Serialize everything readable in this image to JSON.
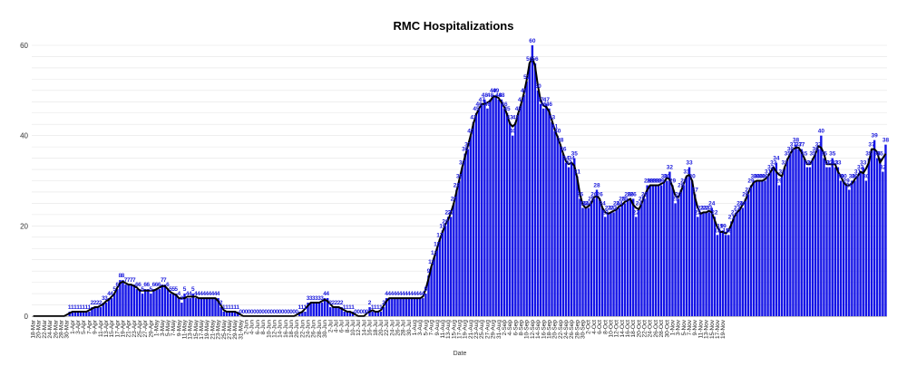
{
  "chart_data": {
    "type": "bar",
    "title": "RMC Hospitalizations",
    "xlabel": "Date",
    "ylabel": "",
    "ylim": [
      0,
      60
    ],
    "yticks": [
      0,
      20,
      40,
      60
    ],
    "grid": true,
    "bar_color": "#1414e6",
    "line_color": "#000000",
    "label_color": "#1a1adc",
    "start_date": "2020-03-18",
    "values": [
      0,
      0,
      0,
      0,
      0,
      0,
      0,
      0,
      0,
      0,
      0,
      0,
      0,
      1,
      1,
      1,
      1,
      1,
      1,
      1,
      1,
      2,
      2,
      2,
      2,
      3,
      3,
      4,
      4,
      5,
      6,
      8,
      8,
      7,
      7,
      7,
      7,
      6,
      6,
      5,
      6,
      6,
      5,
      6,
      6,
      6,
      7,
      7,
      6,
      5,
      5,
      5,
      4,
      3,
      5,
      4,
      4,
      5,
      4,
      4,
      4,
      4,
      4,
      4,
      4,
      4,
      4,
      2,
      1,
      1,
      1,
      1,
      1,
      1,
      0,
      0,
      0,
      0,
      0,
      0,
      0,
      0,
      0,
      0,
      0,
      0,
      0,
      0,
      0,
      0,
      0,
      0,
      0,
      0,
      0,
      1,
      1,
      1,
      3,
      3,
      3,
      3,
      3,
      3,
      4,
      4,
      2,
      2,
      2,
      2,
      2,
      1,
      1,
      1,
      1,
      0,
      0,
      0,
      0,
      0,
      2,
      1,
      1,
      1,
      1,
      2,
      4,
      4,
      4,
      4,
      4,
      4,
      4,
      4,
      4,
      4,
      4,
      4,
      4,
      4,
      5,
      9,
      11,
      13,
      15,
      17,
      19,
      20,
      22,
      22,
      25,
      28,
      30,
      33,
      36,
      37,
      40,
      43,
      45,
      46,
      47,
      48,
      46,
      48,
      49,
      49,
      48,
      48,
      46,
      45,
      43,
      40,
      43,
      45,
      47,
      49,
      52,
      56,
      60,
      56,
      50,
      47,
      46,
      47,
      46,
      43,
      41,
      40,
      38,
      36,
      34,
      33,
      34,
      35,
      31,
      26,
      24,
      24,
      24,
      25,
      26,
      28,
      26,
      24,
      22,
      23,
      23,
      23,
      24,
      24,
      25,
      25,
      26,
      26,
      26,
      22,
      24,
      25,
      26,
      29,
      29,
      29,
      29,
      29,
      29,
      30,
      30,
      32,
      29,
      25,
      26,
      28,
      29,
      31,
      33,
      30,
      27,
      22,
      23,
      23,
      23,
      23,
      24,
      22,
      18,
      19,
      19,
      18,
      18,
      21,
      22,
      23,
      24,
      24,
      26,
      27,
      29,
      30,
      30,
      30,
      30,
      30,
      31,
      32,
      33,
      34,
      29,
      31,
      33,
      35,
      36,
      37,
      38,
      37,
      37,
      35,
      33,
      33,
      35,
      36,
      37,
      40,
      35,
      33,
      33,
      35,
      33,
      33,
      30,
      30,
      29,
      28,
      30,
      30,
      31,
      32,
      33,
      30,
      35,
      37,
      39,
      35,
      35,
      32,
      38
    ],
    "x_tick_labels": [
      "18-Mar",
      "20-Mar",
      "22-Mar",
      "24-Mar",
      "26-Mar",
      "28-Mar",
      "30-Mar",
      "1-Apr",
      "3-Apr",
      "5-Apr",
      "7-Apr",
      "9-Apr",
      "11-Apr",
      "13-Apr",
      "15-Apr",
      "17-Apr",
      "19-Apr",
      "21-Apr",
      "23-Apr",
      "25-Apr",
      "27-Apr",
      "29-Apr",
      "1-May",
      "3-May",
      "5-May",
      "7-May",
      "9-May",
      "11-May",
      "13-May",
      "15-May",
      "17-May",
      "19-May",
      "21-May",
      "23-May",
      "25-May",
      "27-May",
      "29-May",
      "31-May",
      "2-Jun",
      "4-Jun",
      "6-Jun",
      "8-Jun",
      "10-Jun",
      "12-Jun",
      "14-Jun",
      "16-Jun",
      "18-Jun",
      "20-Jun",
      "22-Jun",
      "24-Jun",
      "26-Jun",
      "28-Jun",
      "30-Jun",
      "2-Jul",
      "4-Jul",
      "6-Jul",
      "8-Jul",
      "10-Jul",
      "12-Jul",
      "14-Jul",
      "16-Jul",
      "18-Jul",
      "20-Jul",
      "22-Jul",
      "24-Jul",
      "26-Jul",
      "28-Jul",
      "30-Jul",
      "1-Aug",
      "3-Aug",
      "5-Aug",
      "7-Aug",
      "9-Aug",
      "11-Aug",
      "13-Aug",
      "15-Aug",
      "17-Aug",
      "19-Aug",
      "21-Aug",
      "23-Aug",
      "25-Aug",
      "27-Aug",
      "29-Aug",
      "31-Aug",
      "2-Sep",
      "4-Sep",
      "6-Sep",
      "8-Sep",
      "10-Sep",
      "12-Sep",
      "14-Sep",
      "16-Sep",
      "18-Sep",
      "20-Sep",
      "22-Sep",
      "24-Sep",
      "26-Sep",
      "28-Sep",
      "30-Sep",
      "2-Oct",
      "4-Oct",
      "6-Oct",
      "8-Oct",
      "10-Oct",
      "12-Oct",
      "14-Oct",
      "16-Oct",
      "18-Oct",
      "20-Oct",
      "22-Oct",
      "24-Oct",
      "26-Oct",
      "28-Oct",
      "30-Oct",
      "1-Nov",
      "3-Nov",
      "5-Nov",
      "7-Nov",
      "9-Nov",
      "11-Nov",
      "13-Nov",
      "15-Nov",
      "17-Nov",
      "19-Nov"
    ]
  }
}
